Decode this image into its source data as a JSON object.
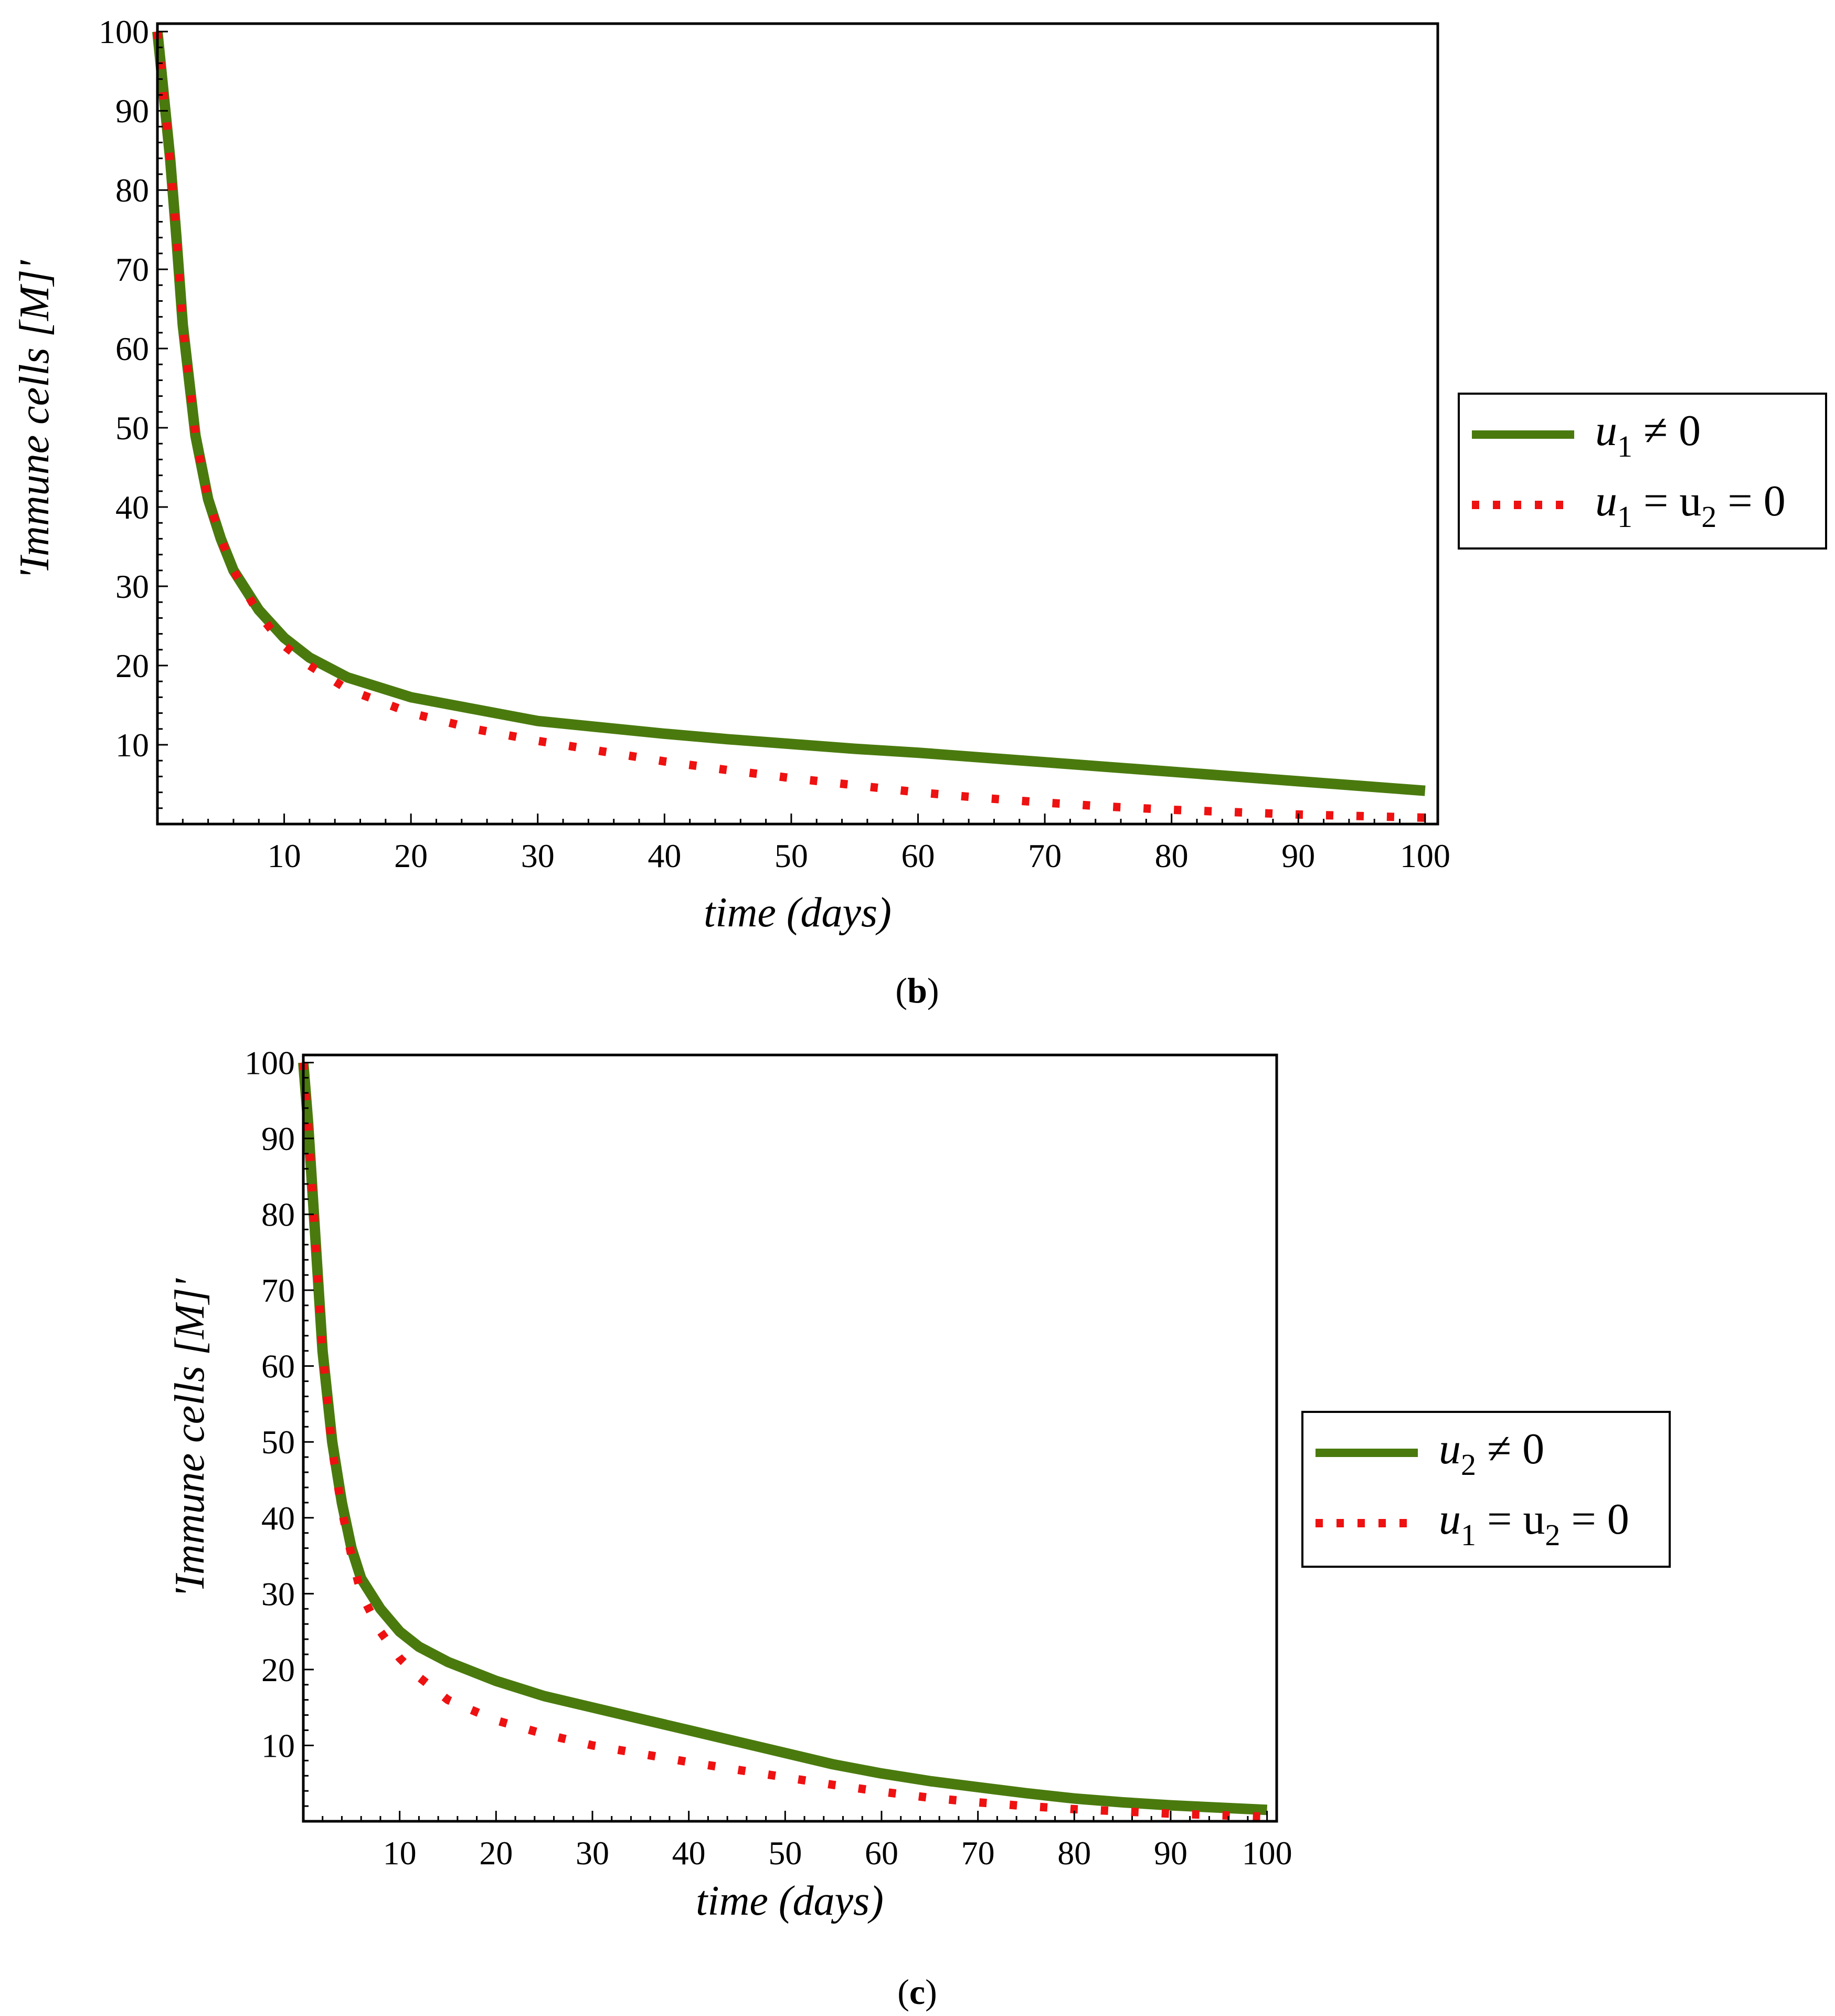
{
  "figure": {
    "panels": [
      {
        "caption_open": "(",
        "caption_letter": "b",
        "caption_close": ")",
        "legend": [
          {
            "main": "u",
            "sub": "1",
            "rest": " ≠ 0"
          },
          {
            "main": "u",
            "sub": "1",
            "rest": " = u",
            "sub2": "2",
            "rest2": " = 0"
          }
        ]
      },
      {
        "caption_open": "(",
        "caption_letter": "c",
        "caption_close": ")",
        "legend": [
          {
            "main": "u",
            "sub": "2",
            "rest": " ≠ 0"
          },
          {
            "main": "u",
            "sub": "1",
            "rest": " = u",
            "sub2": "2",
            "rest2": " = 0"
          }
        ]
      }
    ]
  },
  "chart_data": [
    {
      "type": "line",
      "xlabel": "time (days)",
      "ylabel": "'Immune cells [M]'",
      "xlim": [
        0,
        101
      ],
      "ylim": [
        0,
        101
      ],
      "xticks": [
        10,
        20,
        30,
        40,
        50,
        60,
        70,
        80,
        90,
        100
      ],
      "yticks": [
        10,
        20,
        30,
        40,
        50,
        60,
        70,
        80,
        90,
        100
      ],
      "grid": false,
      "legend_position": "right",
      "series": [
        {
          "name": "u1 ≠ 0",
          "style": "solid",
          "color": "#4a7a0e",
          "x": [
            0,
            0.5,
            1,
            1.5,
            2,
            3,
            4,
            5,
            6,
            8,
            10,
            12,
            15,
            20,
            25,
            30,
            35,
            40,
            45,
            50,
            55,
            60,
            65,
            70,
            75,
            80,
            85,
            90,
            95,
            100
          ],
          "y": [
            100,
            92,
            84,
            74,
            63,
            49,
            41,
            36,
            32,
            27,
            23.5,
            21,
            18.5,
            16,
            14.5,
            13,
            12.2,
            11.4,
            10.7,
            10.1,
            9.5,
            9.0,
            8.4,
            7.8,
            7.2,
            6.6,
            6.0,
            5.4,
            4.8,
            4.2
          ]
        },
        {
          "name": "u1 = u2 = 0",
          "style": "dotted",
          "color": "#ee1111",
          "x": [
            0,
            0.5,
            1,
            1.5,
            2,
            3,
            4,
            5,
            6,
            8,
            10,
            12,
            15,
            20,
            25,
            30,
            35,
            40,
            45,
            50,
            55,
            60,
            65,
            70,
            75,
            80,
            85,
            90,
            95,
            100
          ],
          "y": [
            100,
            92,
            84,
            74,
            63,
            49,
            41,
            36,
            32,
            26.5,
            22.5,
            20,
            17,
            14,
            12,
            10.5,
            9.2,
            7.9,
            6.8,
            5.8,
            4.9,
            4.0,
            3.3,
            2.7,
            2.2,
            1.8,
            1.5,
            1.2,
            1.0,
            0.8
          ]
        }
      ]
    },
    {
      "type": "line",
      "xlabel": "time (days)",
      "ylabel": "'Immune cells [M]'",
      "xlim": [
        0,
        101
      ],
      "ylim": [
        0,
        101
      ],
      "xticks": [
        10,
        20,
        30,
        40,
        50,
        60,
        70,
        80,
        90,
        100
      ],
      "yticks": [
        10,
        20,
        30,
        40,
        50,
        60,
        70,
        80,
        90,
        100
      ],
      "grid": false,
      "legend_position": "right",
      "series": [
        {
          "name": "u2 ≠ 0",
          "style": "solid",
          "color": "#4a7a0e",
          "x": [
            0,
            0.5,
            1,
            1.5,
            2,
            3,
            4,
            5,
            6,
            8,
            10,
            12,
            15,
            20,
            25,
            30,
            35,
            40,
            45,
            50,
            55,
            60,
            65,
            70,
            75,
            80,
            85,
            90,
            95,
            100
          ],
          "y": [
            100,
            92,
            82,
            72,
            62,
            50,
            42,
            36,
            32,
            28,
            25,
            23,
            21,
            18.5,
            16.5,
            15,
            13.5,
            12,
            10.5,
            9,
            7.5,
            6.3,
            5.3,
            4.5,
            3.7,
            3.0,
            2.5,
            2.1,
            1.8,
            1.5
          ]
        },
        {
          "name": "u1 = u2 = 0",
          "style": "dotted",
          "color": "#ee1111",
          "x": [
            0,
            0.5,
            1,
            1.5,
            2,
            3,
            4,
            5,
            6,
            8,
            10,
            12,
            15,
            20,
            25,
            30,
            35,
            40,
            45,
            50,
            55,
            60,
            65,
            70,
            75,
            80,
            85,
            90,
            95,
            100
          ],
          "y": [
            100,
            92,
            82,
            72,
            62,
            49,
            41,
            35,
            30,
            25,
            21.5,
            19,
            16,
            13.3,
            11.5,
            10,
            8.9,
            7.8,
            6.8,
            5.8,
            4.8,
            3.9,
            3.1,
            2.5,
            2.0,
            1.6,
            1.3,
            1.0,
            0.8,
            0.6
          ]
        }
      ]
    }
  ]
}
